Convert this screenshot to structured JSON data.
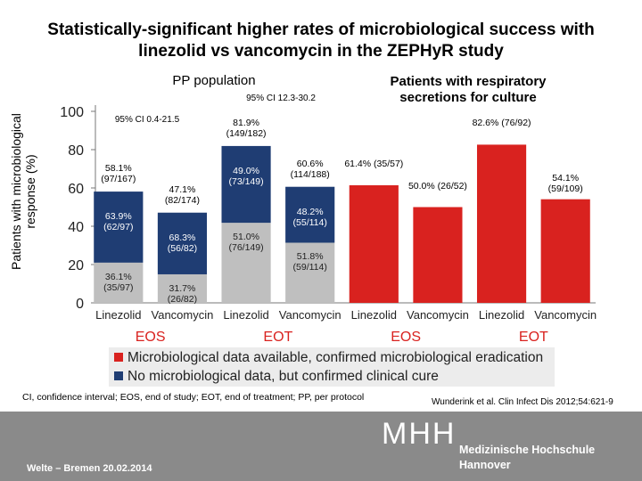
{
  "title": "Statistically-significant higher rates of microbiological success with linezolid vs vancomycin in the ZEPHyR study",
  "chart_data": {
    "type": "bar",
    "stacked": true,
    "y_label": "Patients with microbiological response (%)",
    "categories": [
      "Linezolid",
      "Vancomycin",
      "Linezolid",
      "Vancomycin",
      "Linezolid",
      "Vancomycin",
      "Linezolid",
      "Vancomycin"
    ],
    "groups": [
      "EOS",
      "EOT",
      "EOS",
      "EOT"
    ],
    "panels": [
      "PP population",
      "Patients with respiratory secretions for culture"
    ],
    "ci_labels": [
      "95% CI 0.4-21.5",
      "95% CI 12.3-30.2"
    ],
    "series": [
      {
        "name": "Microbiological data available, confirmed microbiological eradication",
        "color": "#d9221f",
        "values": [
          null,
          null,
          null,
          null,
          61.4,
          50.0,
          82.6,
          54.1
        ],
        "value_labels": [
          null,
          null,
          null,
          null,
          "61.4% (35/57)",
          "50.0% (26/52)",
          "82.6% (76/92)",
          "54.1% (59/109)"
        ]
      },
      {
        "color": "#bfbfbf",
        "values": [
          21.0,
          14.9,
          41.8,
          31.4,
          null,
          null,
          null,
          null
        ],
        "share_labels": [
          "36.1% (35/97)",
          "31.7% (26/82)",
          "51.0% (76/149)",
          "51.8% (59/114)",
          null,
          null,
          null,
          null
        ]
      },
      {
        "name": "No microbiological data, but confirmed clinical cure",
        "color": "#1f3d73",
        "values": [
          37.1,
          32.2,
          40.1,
          29.2,
          null,
          null,
          null,
          null
        ],
        "share_labels": [
          "63.9% (62/97)",
          "68.3% (56/82)",
          "49.0% (73/149)",
          "48.2% (55/114)",
          null,
          null,
          null,
          null
        ]
      }
    ],
    "total_labels": [
      "58.1% (97/167)",
      "47.1% (82/174)",
      "81.9% (149/182)",
      "60.6% (114/188)",
      null,
      null,
      null,
      null
    ],
    "ylim": [
      0,
      100
    ],
    "yticks": [
      0,
      20,
      40,
      60,
      80,
      100
    ]
  },
  "footnote": "CI, confidence interval; EOS, end of study; EOT, end of treatment; PP, per protocol",
  "citation": "Wunderink et al. Clin Infect Dis 2012;54:621-9",
  "footer": {
    "presenter": "Welte – Bremen 20.02.2014",
    "logo_mark": "MHH",
    "institution": [
      "Medizinische Hochschule",
      "Hannover"
    ]
  }
}
